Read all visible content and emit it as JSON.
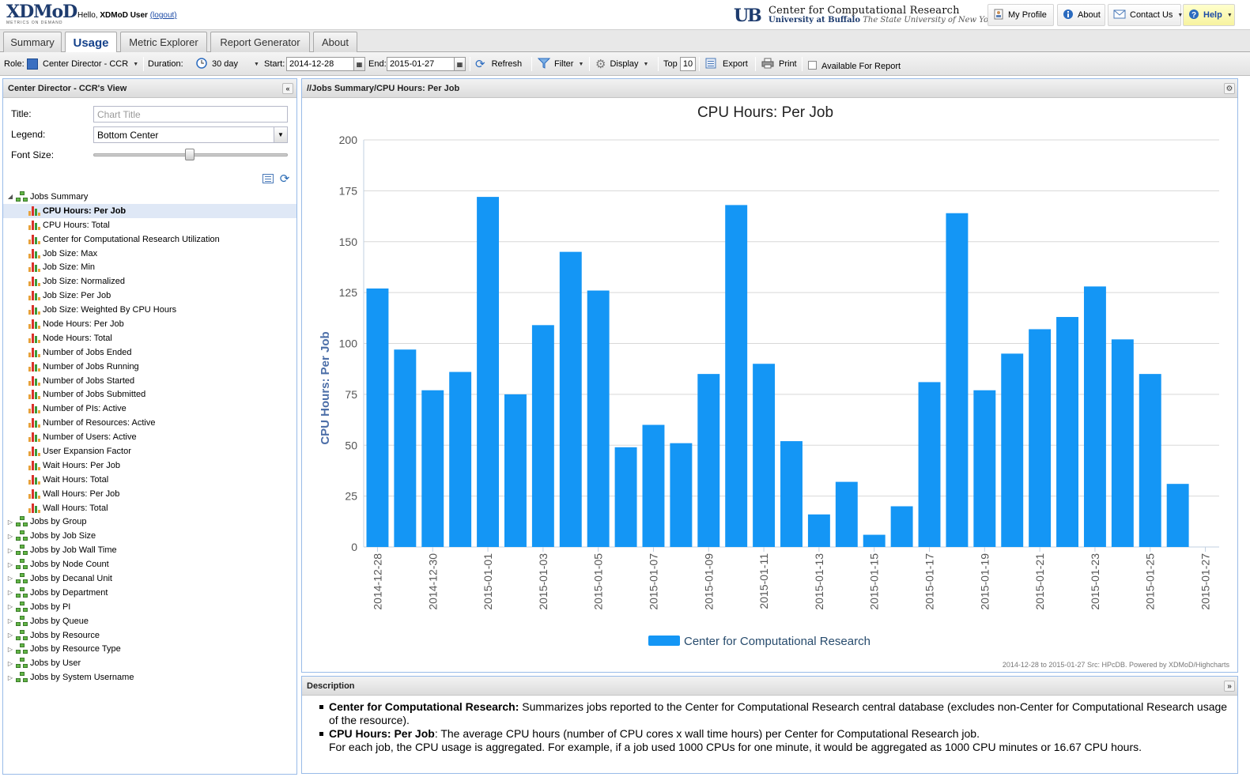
{
  "header": {
    "logo_text": "XDMoD",
    "logo_sub": "METRICS ON DEMAND",
    "hello_prefix": "Hello,",
    "user_name": "XDMoD User",
    "logout_label": "(logout)",
    "ub_mark": "UB",
    "org_line1": "Center for Computational Research",
    "org_line2a": "University at Buffalo",
    "org_line2b": "The State University of New York",
    "buttons": {
      "my_profile": "My Profile",
      "about": "About",
      "contact_us": "Contact Us",
      "help": "Help"
    }
  },
  "tabs": [
    "Summary",
    "Usage",
    "Metric Explorer",
    "Report Generator",
    "About"
  ],
  "active_tab": "Usage",
  "toolbar": {
    "role_label": "Role:",
    "role_value": "Center Director - CCR",
    "duration_label": "Duration:",
    "duration_value": "30 day",
    "start_label": "Start:",
    "start_value": "2014-12-28",
    "end_label": "End:",
    "end_value": "2015-01-27",
    "refresh": "Refresh",
    "filter": "Filter",
    "display": "Display",
    "top_label": "Top",
    "top_value": "10",
    "export": "Export",
    "print": "Print",
    "available_for_report": "Available For Report"
  },
  "left_panel": {
    "title": "Center Director - CCR's View",
    "title_label": "Title:",
    "title_placeholder": "Chart Title",
    "legend_label": "Legend:",
    "legend_value": "Bottom Center",
    "font_size_label": "Font Size:",
    "font_size_fraction": 0.52,
    "tree": {
      "root": "Jobs Summary",
      "children": [
        "CPU Hours: Per Job",
        "CPU Hours: Total",
        "Center for Computational Research Utilization",
        "Job Size: Max",
        "Job Size: Min",
        "Job Size: Normalized",
        "Job Size: Per Job",
        "Job Size: Weighted By CPU Hours",
        "Node Hours: Per Job",
        "Node Hours: Total",
        "Number of Jobs Ended",
        "Number of Jobs Running",
        "Number of Jobs Started",
        "Number of Jobs Submitted",
        "Number of PIs: Active",
        "Number of Resources: Active",
        "Number of Users: Active",
        "User Expansion Factor",
        "Wait Hours: Per Job",
        "Wait Hours: Total",
        "Wall Hours: Per Job",
        "Wall Hours: Total"
      ],
      "selected": "CPU Hours: Per Job",
      "groups": [
        "Jobs by Group",
        "Jobs by Job Size",
        "Jobs by Job Wall Time",
        "Jobs by Node Count",
        "Jobs by Decanal Unit",
        "Jobs by Department",
        "Jobs by PI",
        "Jobs by Queue",
        "Jobs by Resource",
        "Jobs by Resource Type",
        "Jobs by User",
        "Jobs by System Username"
      ]
    }
  },
  "chart_panel": {
    "path": "//Jobs Summary/CPU Hours: Per Job",
    "credits": "2014-12-28 to 2015-01-27 Src: HPcDB. Powered by XDMoD/Highcharts"
  },
  "chart_data": {
    "type": "bar",
    "title": "CPU Hours: Per Job",
    "ylabel": "CPU Hours: Per Job",
    "xlabel": "",
    "ylim": [
      0,
      200
    ],
    "yticks": [
      0,
      25,
      50,
      75,
      100,
      125,
      150,
      175,
      200
    ],
    "grid": true,
    "legend_position": "bottom-center",
    "bar_color": "#1496f5",
    "categories": [
      "2014-12-28",
      "2014-12-29",
      "2014-12-30",
      "2014-12-31",
      "2015-01-01",
      "2015-01-02",
      "2015-01-03",
      "2015-01-04",
      "2015-01-05",
      "2015-01-06",
      "2015-01-07",
      "2015-01-08",
      "2015-01-09",
      "2015-01-10",
      "2015-01-11",
      "2015-01-12",
      "2015-01-13",
      "2015-01-14",
      "2015-01-15",
      "2015-01-16",
      "2015-01-17",
      "2015-01-18",
      "2015-01-19",
      "2015-01-20",
      "2015-01-21",
      "2015-01-22",
      "2015-01-23",
      "2015-01-24",
      "2015-01-25",
      "2015-01-26",
      "2015-01-27"
    ],
    "xtick_labels": [
      "2014-12-28",
      "2014-12-30",
      "2015-01-01",
      "2015-01-03",
      "2015-01-05",
      "2015-01-07",
      "2015-01-09",
      "2015-01-11",
      "2015-01-13",
      "2015-01-15",
      "2015-01-17",
      "2015-01-19",
      "2015-01-21",
      "2015-01-23",
      "2015-01-25",
      "2015-01-27"
    ],
    "series": [
      {
        "name": "Center for Computational Research",
        "values": [
          127,
          97,
          77,
          86,
          172,
          75,
          109,
          145,
          126,
          49,
          60,
          51,
          85,
          168,
          90,
          52,
          16,
          32,
          6,
          20,
          81,
          164,
          77,
          95,
          107,
          113,
          128,
          102,
          85,
          31,
          0
        ]
      }
    ]
  },
  "description": {
    "title": "Description",
    "items": [
      {
        "term": "Center for Computational Research:",
        "text": " Summarizes jobs reported to the Center for Computational Research central database (excludes non-Center for Computational Research usage of the resource)."
      },
      {
        "term": "CPU Hours: Per Job",
        "text": ": The average CPU hours (number of CPU cores x wall time hours) per Center for Computational Research job.",
        "text2": "For each job, the CPU usage is aggregated. For example, if a job used 1000 CPUs for one minute, it would be aggregated as 1000 CPU minutes or 16.67 CPU hours."
      }
    ]
  }
}
